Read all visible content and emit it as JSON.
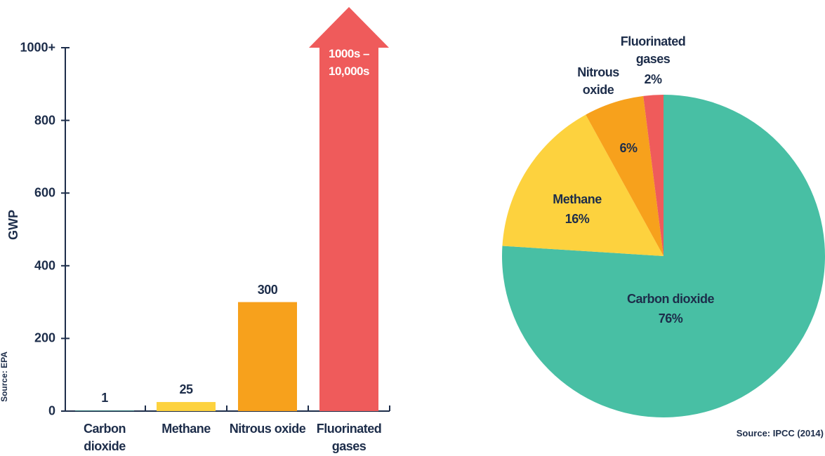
{
  "chart_data": [
    {
      "type": "bar",
      "y_label": "GWP",
      "source": "Source: EPA",
      "categories": [
        "Carbon dioxide",
        "Methane",
        "Nitrous oxide",
        "Fluorinated gases"
      ],
      "values": [
        1,
        25,
        300,
        1000
      ],
      "value_labels": [
        "1",
        "25",
        "300",
        "1000s – 10,000s"
      ],
      "colors": [
        "#48bfa4",
        "#fdd23e",
        "#f7a11c",
        "#ef5b5b"
      ],
      "ylim": [
        0,
        1000
      ],
      "yticks": [
        0,
        200,
        400,
        600,
        800,
        {
          "value": 1000,
          "label": "1000+"
        }
      ]
    },
    {
      "type": "pie",
      "source": "Source: IPCC (2014)",
      "categories": [
        "Carbon dioxide",
        "Methane",
        "Nitrous oxide",
        "Fluorinated gases"
      ],
      "values": [
        76,
        16,
        6,
        2
      ],
      "value_labels": [
        "76%",
        "16%",
        "6%",
        "2%"
      ],
      "colors": [
        "#48bfa4",
        "#fdd23e",
        "#f7a11c",
        "#ef5b5b"
      ]
    }
  ]
}
